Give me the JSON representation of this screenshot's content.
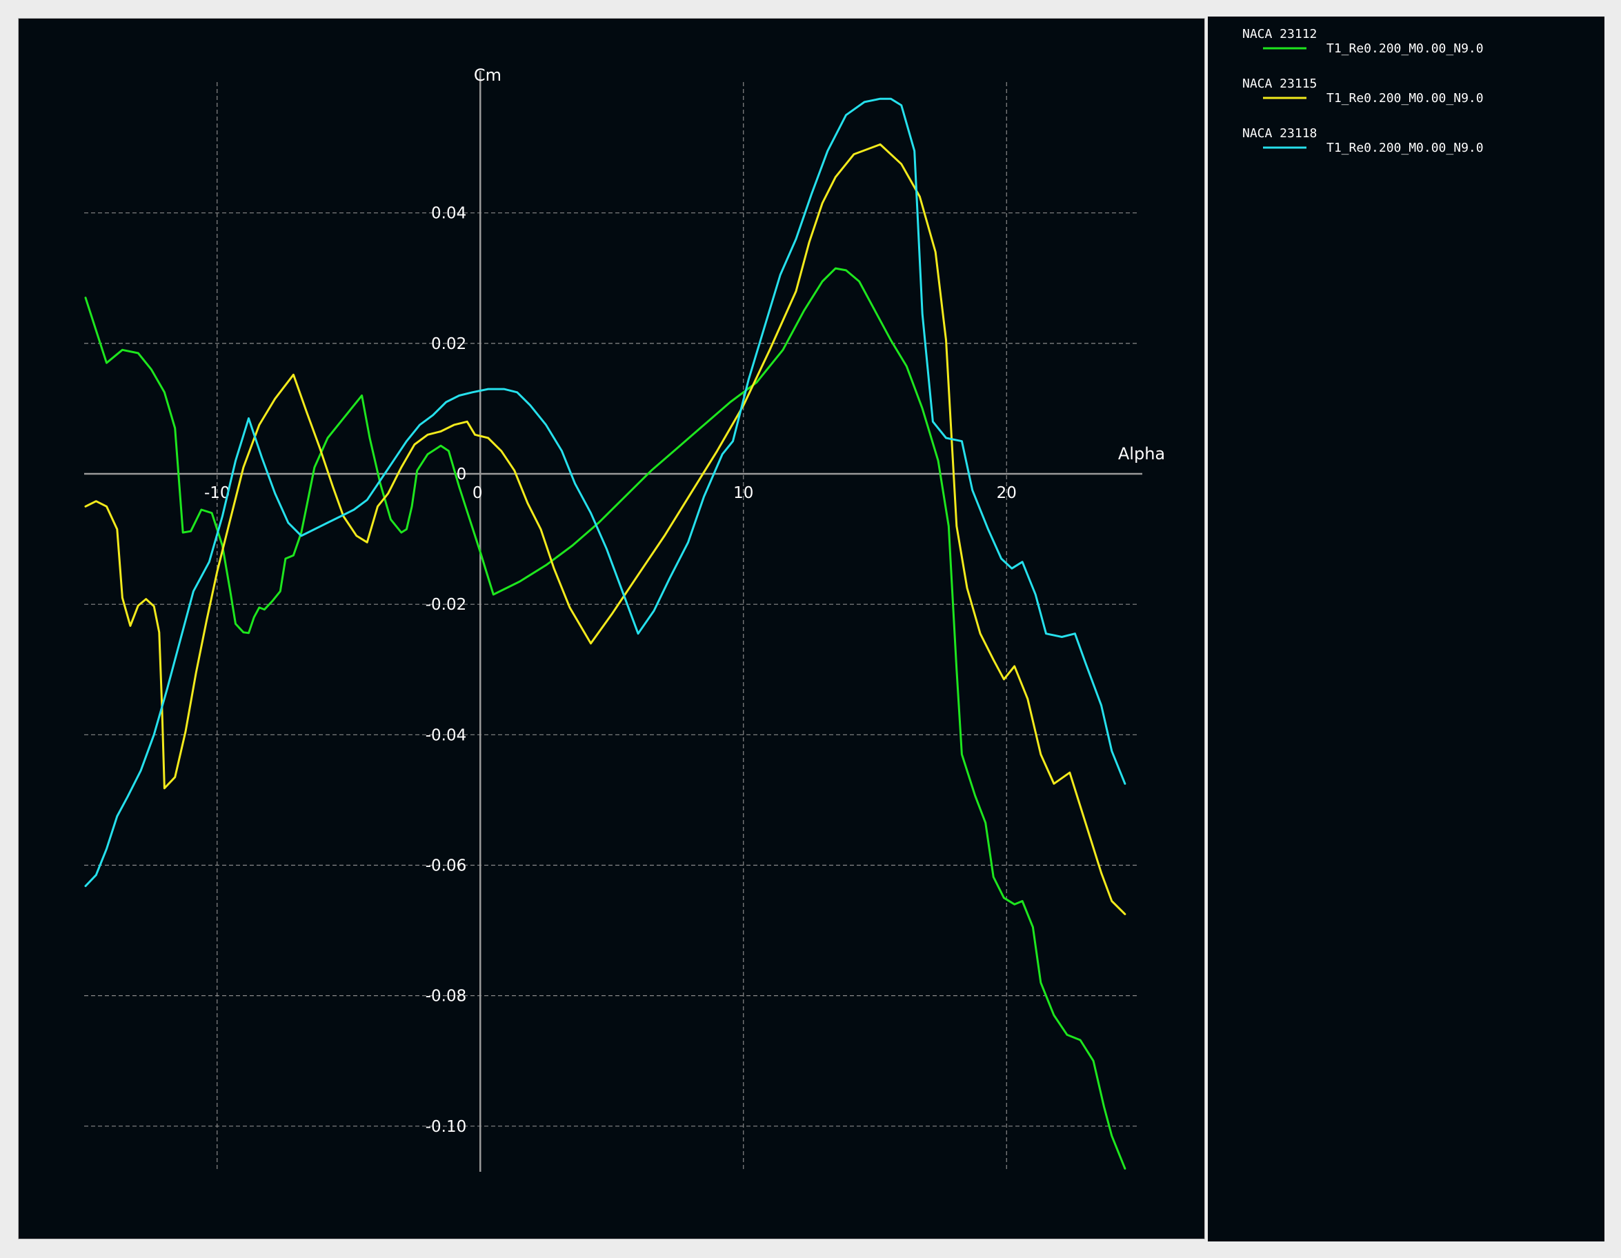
{
  "chart_data": {
    "type": "line",
    "title": "",
    "xlabel": "Alpha",
    "ylabel": "Cm",
    "xlim": [
      -15,
      25
    ],
    "ylim": [
      -0.107,
      0.059
    ],
    "grid": true,
    "legend_position": "outside-right",
    "x_ticks": [
      -10,
      10,
      20
    ],
    "x_tick_labels": [
      "-10",
      "10",
      "20"
    ],
    "y_ticks": [
      -0.1,
      -0.08,
      -0.06,
      -0.04,
      -0.02,
      0.02,
      0.04
    ],
    "y_tick_labels": [
      "-0.10",
      "-0.08",
      "-0.06",
      "-0.04",
      "-0.02",
      "0.02",
      "0.04"
    ],
    "origin_labels": {
      "x": "0",
      "y": "0"
    },
    "colors": {
      "background": "#020a10",
      "grid": "#8a8a8a",
      "axis": "#9a9a9a"
    },
    "series": [
      {
        "name": "NACA 23112",
        "label": "T1_Re0.200_M0.00_N9.0",
        "color": "#1ee61e",
        "points": [
          [
            -15,
            0.027
          ],
          [
            -14.2,
            0.017
          ],
          [
            -13.6,
            0.019
          ],
          [
            -13,
            0.0185
          ],
          [
            -12.5,
            0.016
          ],
          [
            -12,
            0.0125
          ],
          [
            -11.6,
            0.007
          ],
          [
            -11.3,
            -0.009
          ],
          [
            -11,
            -0.0088
          ],
          [
            -10.6,
            -0.0055
          ],
          [
            -10.2,
            -0.006
          ],
          [
            -9.8,
            -0.011
          ],
          [
            -9.5,
            -0.018
          ],
          [
            -9.3,
            -0.023
          ],
          [
            -9,
            -0.0243
          ],
          [
            -8.8,
            -0.0244
          ],
          [
            -8.6,
            -0.022
          ],
          [
            -8.4,
            -0.0205
          ],
          [
            -8.2,
            -0.0208
          ],
          [
            -7.9,
            -0.0195
          ],
          [
            -7.6,
            -0.018
          ],
          [
            -7.4,
            -0.013
          ],
          [
            -7.1,
            -0.0125
          ],
          [
            -6.8,
            -0.009
          ],
          [
            -6.6,
            -0.005
          ],
          [
            -6.3,
            0.001
          ],
          [
            -5.8,
            0.0055
          ],
          [
            -5.2,
            0.0085
          ],
          [
            -4.8,
            0.0105
          ],
          [
            -4.5,
            0.012
          ],
          [
            -4.2,
            0.0055
          ],
          [
            -3.8,
            -0.0015
          ],
          [
            -3.4,
            -0.007
          ],
          [
            -3,
            -0.009
          ],
          [
            -2.8,
            -0.0085
          ],
          [
            -2.6,
            -0.005
          ],
          [
            -2.4,
            0.0005
          ],
          [
            -2,
            0.003
          ],
          [
            -1.5,
            0.0043
          ],
          [
            -1.2,
            0.0035
          ],
          [
            -0.8,
            -0.002
          ],
          [
            -0.4,
            -0.007
          ],
          [
            0,
            -0.012
          ],
          [
            0.5,
            -0.0185
          ],
          [
            1.5,
            -0.0165
          ],
          [
            2.5,
            -0.014
          ],
          [
            3.5,
            -0.011
          ],
          [
            4.5,
            -0.0075
          ],
          [
            5.5,
            -0.0035
          ],
          [
            6.5,
            0.0005
          ],
          [
            7.5,
            0.004
          ],
          [
            8.5,
            0.0075
          ],
          [
            9.5,
            0.011
          ],
          [
            10.5,
            0.014
          ],
          [
            11.5,
            0.019
          ],
          [
            12.3,
            0.025
          ],
          [
            13,
            0.0295
          ],
          [
            13.5,
            0.0315
          ],
          [
            13.9,
            0.0312
          ],
          [
            14.4,
            0.0295
          ],
          [
            15,
            0.025
          ],
          [
            15.6,
            0.0205
          ],
          [
            16.2,
            0.0165
          ],
          [
            16.8,
            0.01
          ],
          [
            17.4,
            0.002
          ],
          [
            17.8,
            -0.008
          ],
          [
            18.1,
            -0.03
          ],
          [
            18.3,
            -0.043
          ],
          [
            18.8,
            -0.0493
          ],
          [
            19.2,
            -0.0535
          ],
          [
            19.5,
            -0.0618
          ],
          [
            19.9,
            -0.065
          ],
          [
            20.3,
            -0.066
          ],
          [
            20.6,
            -0.0655
          ],
          [
            21,
            -0.0695
          ],
          [
            21.3,
            -0.078
          ],
          [
            21.8,
            -0.083
          ],
          [
            22.3,
            -0.086
          ],
          [
            22.8,
            -0.0868
          ],
          [
            23.3,
            -0.09
          ],
          [
            23.7,
            -0.097
          ],
          [
            24,
            -0.1015
          ],
          [
            24.5,
            -0.1065
          ]
        ]
      },
      {
        "name": "NACA 23115",
        "label": "T1_Re0.200_M0.00_N9.0",
        "color": "#f2ea1c",
        "points": [
          [
            -15,
            -0.005
          ],
          [
            -14.6,
            -0.0042
          ],
          [
            -14.2,
            -0.005
          ],
          [
            -13.8,
            -0.0085
          ],
          [
            -13.6,
            -0.019
          ],
          [
            -13.3,
            -0.0233
          ],
          [
            -13,
            -0.0202
          ],
          [
            -12.7,
            -0.0192
          ],
          [
            -12.4,
            -0.0203
          ],
          [
            -12.2,
            -0.0243
          ],
          [
            -12.1,
            -0.035
          ],
          [
            -12,
            -0.0482
          ],
          [
            -11.6,
            -0.0465
          ],
          [
            -11.2,
            -0.0395
          ],
          [
            -10.8,
            -0.0305
          ],
          [
            -10.4,
            -0.0225
          ],
          [
            -10,
            -0.015
          ],
          [
            -9.5,
            -0.007
          ],
          [
            -9,
            0.001
          ],
          [
            -8.4,
            0.0075
          ],
          [
            -7.8,
            0.0115
          ],
          [
            -7.1,
            0.0152
          ],
          [
            -6.6,
            0.0095
          ],
          [
            -6.1,
            0.004
          ],
          [
            -5.6,
            -0.002
          ],
          [
            -5.2,
            -0.0065
          ],
          [
            -4.7,
            -0.0095
          ],
          [
            -4.3,
            -0.0105
          ],
          [
            -3.9,
            -0.005
          ],
          [
            -3.5,
            -0.003
          ],
          [
            -3,
            0.001
          ],
          [
            -2.5,
            0.0045
          ],
          [
            -2,
            0.006
          ],
          [
            -1.5,
            0.0065
          ],
          [
            -1,
            0.0075
          ],
          [
            -0.5,
            0.008
          ],
          [
            -0.2,
            0.006
          ],
          [
            0.3,
            0.0055
          ],
          [
            0.8,
            0.0035
          ],
          [
            1.3,
            0.0005
          ],
          [
            1.8,
            -0.0045
          ],
          [
            2.3,
            -0.0085
          ],
          [
            2.8,
            -0.0145
          ],
          [
            3.4,
            -0.0205
          ],
          [
            4.2,
            -0.026
          ],
          [
            5,
            -0.0215
          ],
          [
            6,
            -0.0155
          ],
          [
            7,
            -0.0095
          ],
          [
            8,
            -0.003
          ],
          [
            9,
            0.0035
          ],
          [
            10,
            0.0105
          ],
          [
            11,
            0.019
          ],
          [
            12,
            0.028
          ],
          [
            12.5,
            0.0355
          ],
          [
            13,
            0.0415
          ],
          [
            13.5,
            0.0455
          ],
          [
            14.2,
            0.049
          ],
          [
            15.2,
            0.0505
          ],
          [
            16,
            0.0475
          ],
          [
            16.7,
            0.0425
          ],
          [
            17.3,
            0.034
          ],
          [
            17.7,
            0.0205
          ],
          [
            18.1,
            -0.008
          ],
          [
            18.5,
            -0.0175
          ],
          [
            19,
            -0.0245
          ],
          [
            19.5,
            -0.0285
          ],
          [
            19.9,
            -0.0315
          ],
          [
            20.3,
            -0.0295
          ],
          [
            20.8,
            -0.0345
          ],
          [
            21.3,
            -0.043
          ],
          [
            21.8,
            -0.0475
          ],
          [
            22.4,
            -0.0458
          ],
          [
            23,
            -0.0535
          ],
          [
            23.6,
            -0.0612
          ],
          [
            24,
            -0.0655
          ],
          [
            24.5,
            -0.0675
          ]
        ]
      },
      {
        "name": "NACA 23118",
        "label": "T1_Re0.200_M0.00_N9.0",
        "color": "#26e0ec",
        "points": [
          [
            -15,
            -0.0632
          ],
          [
            -14.6,
            -0.0615
          ],
          [
            -14.2,
            -0.0575
          ],
          [
            -13.8,
            -0.0525
          ],
          [
            -13.4,
            -0.0495
          ],
          [
            -12.9,
            -0.0455
          ],
          [
            -12.4,
            -0.04
          ],
          [
            -11.9,
            -0.033
          ],
          [
            -11.4,
            -0.0255
          ],
          [
            -10.9,
            -0.018
          ],
          [
            -10.3,
            -0.0135
          ],
          [
            -9.8,
            -0.0065
          ],
          [
            -9.3,
            0.002
          ],
          [
            -8.8,
            0.0085
          ],
          [
            -8.3,
            0.0025
          ],
          [
            -7.8,
            -0.003
          ],
          [
            -7.3,
            -0.0075
          ],
          [
            -6.8,
            -0.0095
          ],
          [
            -6.3,
            -0.0085
          ],
          [
            -5.8,
            -0.0075
          ],
          [
            -5.3,
            -0.0065
          ],
          [
            -4.8,
            -0.0055
          ],
          [
            -4.3,
            -0.004
          ],
          [
            -3.8,
            -0.001
          ],
          [
            -3.3,
            0.002
          ],
          [
            -2.8,
            0.005
          ],
          [
            -2.3,
            0.0075
          ],
          [
            -1.8,
            0.009
          ],
          [
            -1.3,
            0.011
          ],
          [
            -0.8,
            0.012
          ],
          [
            -0.3,
            0.0125
          ],
          [
            0.3,
            0.013
          ],
          [
            0.9,
            0.013
          ],
          [
            1.4,
            0.0125
          ],
          [
            1.9,
            0.0105
          ],
          [
            2.5,
            0.0075
          ],
          [
            3.1,
            0.0035
          ],
          [
            3.6,
            -0.0015
          ],
          [
            4.2,
            -0.006
          ],
          [
            4.8,
            -0.0115
          ],
          [
            5.4,
            -0.018
          ],
          [
            6,
            -0.0245
          ],
          [
            6.6,
            -0.021
          ],
          [
            7.2,
            -0.016
          ],
          [
            7.9,
            -0.0105
          ],
          [
            8.5,
            -0.0035
          ],
          [
            9.2,
            0.003
          ],
          [
            9.6,
            0.005
          ],
          [
            10.2,
            0.0145
          ],
          [
            10.8,
            0.0225
          ],
          [
            11.4,
            0.0305
          ],
          [
            12,
            0.036
          ],
          [
            12.6,
            0.043
          ],
          [
            13.2,
            0.0495
          ],
          [
            13.9,
            0.055
          ],
          [
            14.6,
            0.057
          ],
          [
            15.2,
            0.0575
          ],
          [
            15.6,
            0.0575
          ],
          [
            16,
            0.0565
          ],
          [
            16.5,
            0.0495
          ],
          [
            16.8,
            0.0245
          ],
          [
            17.2,
            0.008
          ],
          [
            17.7,
            0.0055
          ],
          [
            18.3,
            0.005
          ],
          [
            18.7,
            -0.0025
          ],
          [
            19.3,
            -0.0085
          ],
          [
            19.8,
            -0.013
          ],
          [
            20.2,
            -0.0145
          ],
          [
            20.6,
            -0.0135
          ],
          [
            21.1,
            -0.0185
          ],
          [
            21.5,
            -0.0245
          ],
          [
            22.1,
            -0.025
          ],
          [
            22.6,
            -0.0245
          ],
          [
            23,
            -0.029
          ],
          [
            23.6,
            -0.0355
          ],
          [
            24,
            -0.0425
          ],
          [
            24.5,
            -0.0475
          ]
        ]
      }
    ]
  }
}
